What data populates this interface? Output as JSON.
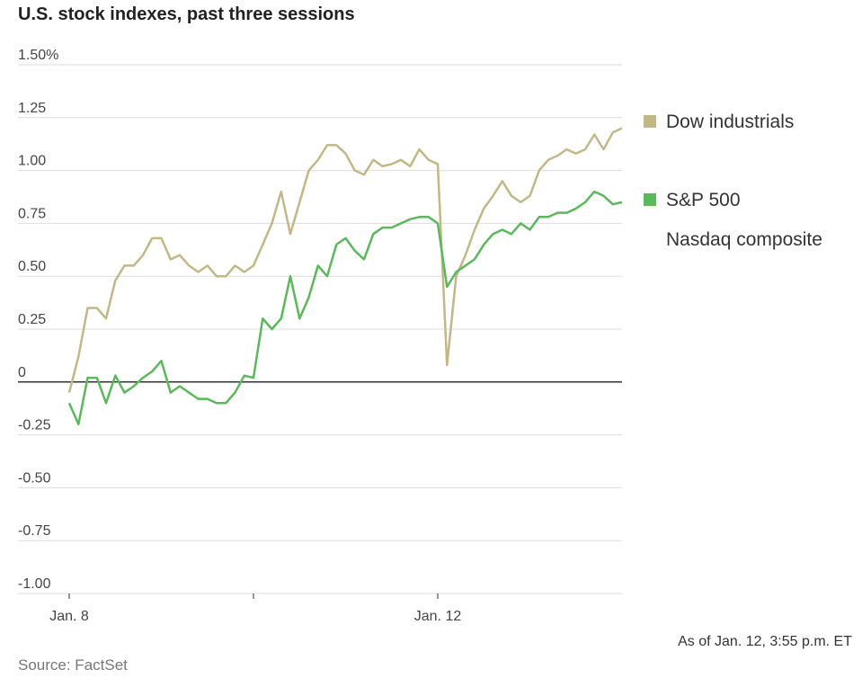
{
  "chart_data": {
    "type": "line",
    "title": "U.S. stock indexes, past three sessions",
    "note": "As of Jan. 12, 3:55 p.m. ET",
    "source": "Source: FactSet",
    "x": [
      0,
      1,
      2,
      3,
      4,
      5,
      6,
      7,
      8,
      9,
      10,
      11,
      12,
      13,
      14,
      15,
      16,
      17,
      18,
      19,
      20,
      21,
      22,
      23,
      24,
      25,
      26,
      27,
      28,
      29,
      30,
      31,
      32,
      33,
      34,
      35,
      36,
      37,
      38,
      39,
      40,
      41,
      42,
      43,
      44,
      45,
      46,
      47,
      48,
      49,
      50,
      51,
      52,
      53,
      54,
      55,
      56,
      57,
      58,
      59,
      60
    ],
    "xlim": [
      0,
      60
    ],
    "xticks": [
      {
        "value": 0,
        "label": "Jan. 8"
      },
      {
        "value": 40,
        "label": "Jan. 12"
      }
    ],
    "xtick_marks": [
      0,
      20,
      40
    ],
    "ylim": [
      -1.0,
      1.5
    ],
    "yticks": [
      {
        "value": 1.5,
        "label": "1.50%"
      },
      1.25,
      {
        "value": 1.0,
        "label": "1.00"
      },
      0.75,
      {
        "value": 0.5,
        "label": "0.50"
      },
      0.25,
      0,
      -0.25,
      {
        "value": -0.5,
        "label": "-0.50"
      },
      -0.75,
      {
        "value": -1.0,
        "label": "-1.00"
      }
    ],
    "grid": true,
    "series": [
      {
        "name": "Dow industrials",
        "color": "#c2b887",
        "values": [
          -0.05,
          0.12,
          0.35,
          0.35,
          0.3,
          0.48,
          0.55,
          0.55,
          0.6,
          0.68,
          0.68,
          0.58,
          0.6,
          0.55,
          0.52,
          0.55,
          0.5,
          0.5,
          0.55,
          0.52,
          0.55,
          0.65,
          0.75,
          0.9,
          0.7,
          0.85,
          1.0,
          1.05,
          1.12,
          1.12,
          1.08,
          1.0,
          0.98,
          1.05,
          1.02,
          1.03,
          1.05,
          1.02,
          1.1,
          1.05,
          1.03,
          0.08,
          0.5,
          0.6,
          0.72,
          0.82,
          0.88,
          0.95,
          0.88,
          0.85,
          0.88,
          1.0,
          1.05,
          1.07,
          1.1,
          1.08,
          1.1,
          1.17,
          1.1,
          1.18,
          1.2
        ]
      },
      {
        "name": "S&P 500",
        "color": "#5cb85c",
        "values": [
          -0.1,
          -0.2,
          0.02,
          0.02,
          -0.1,
          0.03,
          -0.05,
          -0.02,
          0.02,
          0.05,
          0.1,
          -0.05,
          -0.02,
          -0.05,
          -0.08,
          -0.08,
          -0.1,
          -0.1,
          -0.05,
          0.03,
          0.02,
          0.3,
          0.25,
          0.3,
          0.5,
          0.3,
          0.4,
          0.55,
          0.5,
          0.65,
          0.68,
          0.62,
          0.58,
          0.7,
          0.73,
          0.73,
          0.75,
          0.77,
          0.78,
          0.78,
          0.75,
          0.45,
          0.52,
          0.55,
          0.58,
          0.65,
          0.7,
          0.72,
          0.7,
          0.75,
          0.72,
          0.78,
          0.78,
          0.8,
          0.8,
          0.82,
          0.85,
          0.9,
          0.88,
          0.84,
          0.85
        ]
      },
      {
        "name": "Nasdaq composite",
        "color": null,
        "values": [
          null,
          null,
          null,
          null,
          null,
          null,
          null,
          null,
          null,
          null,
          null,
          null,
          null,
          null,
          null,
          null,
          null,
          null,
          null,
          null,
          null,
          null,
          null,
          null,
          null,
          null,
          null,
          null,
          null,
          null,
          null,
          null,
          null,
          null,
          null,
          null,
          null,
          null,
          null,
          null,
          null,
          null,
          null,
          null,
          null,
          null,
          null,
          null,
          null,
          null,
          null,
          null,
          null,
          null,
          null,
          null,
          null,
          null,
          null,
          null,
          null
        ]
      }
    ]
  }
}
